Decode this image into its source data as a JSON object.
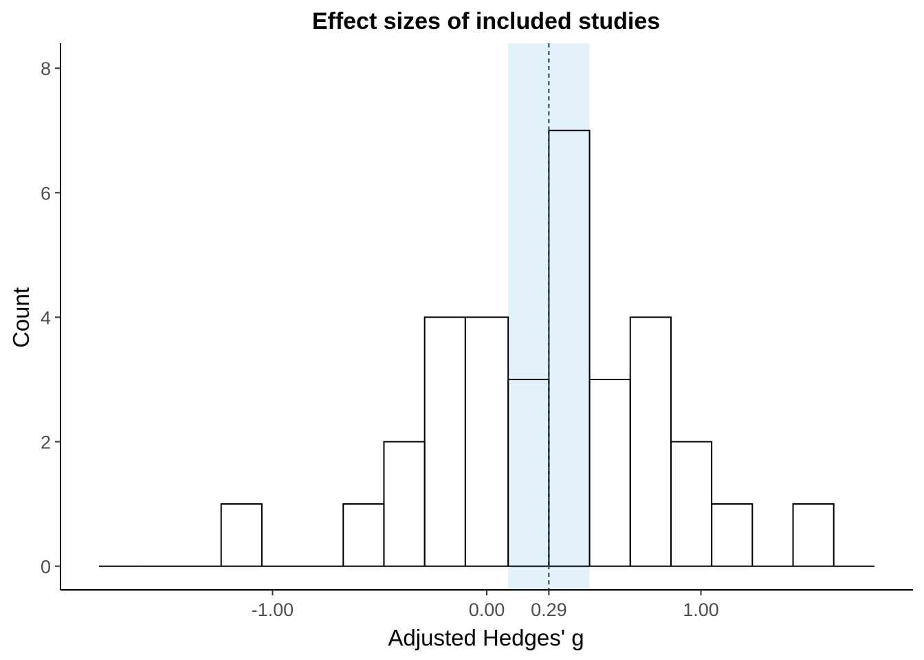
{
  "chart_data": {
    "type": "bar",
    "subtype": "histogram",
    "title": "Effect sizes of included studies",
    "xlabel": "Adjusted Hedges' g",
    "ylabel": "Count",
    "bin_width": 0.19,
    "bins": [
      {
        "x_start": -1.81,
        "x_end": -1.62,
        "count": 0
      },
      {
        "x_start": -1.62,
        "x_end": -1.43,
        "count": 0
      },
      {
        "x_start": -1.43,
        "x_end": -1.24,
        "count": 0
      },
      {
        "x_start": -1.24,
        "x_end": -1.05,
        "count": 1
      },
      {
        "x_start": -1.05,
        "x_end": -0.86,
        "count": 0
      },
      {
        "x_start": -0.86,
        "x_end": -0.67,
        "count": 0
      },
      {
        "x_start": -0.67,
        "x_end": -0.48,
        "count": 1
      },
      {
        "x_start": -0.48,
        "x_end": -0.29,
        "count": 2
      },
      {
        "x_start": -0.29,
        "x_end": -0.1,
        "count": 4
      },
      {
        "x_start": -0.1,
        "x_end": 0.1,
        "count": 4
      },
      {
        "x_start": 0.1,
        "x_end": 0.29,
        "count": 3
      },
      {
        "x_start": 0.29,
        "x_end": 0.48,
        "count": 7
      },
      {
        "x_start": 0.48,
        "x_end": 0.67,
        "count": 3
      },
      {
        "x_start": 0.67,
        "x_end": 0.86,
        "count": 4
      },
      {
        "x_start": 0.86,
        "x_end": 1.05,
        "count": 2
      },
      {
        "x_start": 1.05,
        "x_end": 1.24,
        "count": 1
      },
      {
        "x_start": 1.24,
        "x_end": 1.43,
        "count": 0
      },
      {
        "x_start": 1.43,
        "x_end": 1.62,
        "count": 1
      },
      {
        "x_start": 1.62,
        "x_end": 1.81,
        "count": 0
      }
    ],
    "mean_line": {
      "x": 0.29,
      "style": "dashed",
      "color": "#1f3f5f"
    },
    "ci_band": {
      "x_start": 0.1,
      "x_end": 0.48,
      "color": "#e3f1fa"
    },
    "x_ticks": [
      {
        "value": -1.0,
        "label": "-1.00"
      },
      {
        "value": 0.0,
        "label": "0.00"
      },
      {
        "value": 0.29,
        "label": "0.29"
      },
      {
        "value": 1.0,
        "label": "1.00"
      }
    ],
    "y_ticks": [
      {
        "value": 0,
        "label": "0"
      },
      {
        "value": 2,
        "label": "2"
      },
      {
        "value": 4,
        "label": "4"
      },
      {
        "value": 6,
        "label": "6"
      },
      {
        "value": 8,
        "label": "8"
      }
    ],
    "xlim": [
      -1.99,
      1.99
    ],
    "ylim": [
      -0.38,
      8.4
    ],
    "grid": false,
    "legend": "none",
    "bar_fill": "#ffffff",
    "bar_stroke": "#000000"
  }
}
